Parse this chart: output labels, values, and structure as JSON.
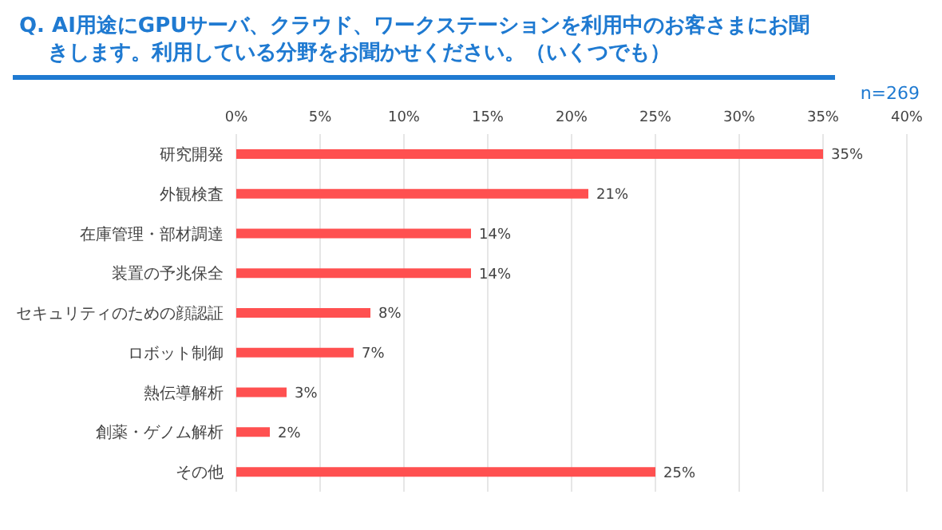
{
  "chart_data": {
    "type": "bar",
    "orientation": "horizontal",
    "title": "Q. AI用途にGPUサーバ、クラウド、ワークステーションを利用中のお客さまにお聞きします。利用している分野をお聞かせください。（いくつでも）",
    "annotations": [
      "n=269"
    ],
    "categories": [
      "研究開発",
      "外観検査",
      "在庫管理・部材調達",
      "装置の予兆保全",
      "セキュリティのための顔認証",
      "ロボット制御",
      "熱伝導解析",
      "創薬・ゲノム解析",
      "その他"
    ],
    "values": [
      35,
      21,
      14,
      14,
      8,
      7,
      3,
      2,
      25
    ],
    "value_labels": [
      "35%",
      "21%",
      "14%",
      "14%",
      "8%",
      "7%",
      "3%",
      "2%",
      "25%"
    ],
    "color": "#ff5050",
    "xlim": [
      0,
      40
    ],
    "xticks": [
      {
        "value": 0,
        "label": "0%"
      },
      {
        "value": 5,
        "label": "5%"
      },
      {
        "value": 10,
        "label": "10%"
      },
      {
        "value": 15,
        "label": "15%"
      },
      {
        "value": 20,
        "label": "20%"
      },
      {
        "value": 25,
        "label": "25%"
      },
      {
        "value": 30,
        "label": "30%"
      },
      {
        "value": 35,
        "label": "35%"
      },
      {
        "value": 40,
        "label": "40%"
      }
    ],
    "grid": "x"
  }
}
